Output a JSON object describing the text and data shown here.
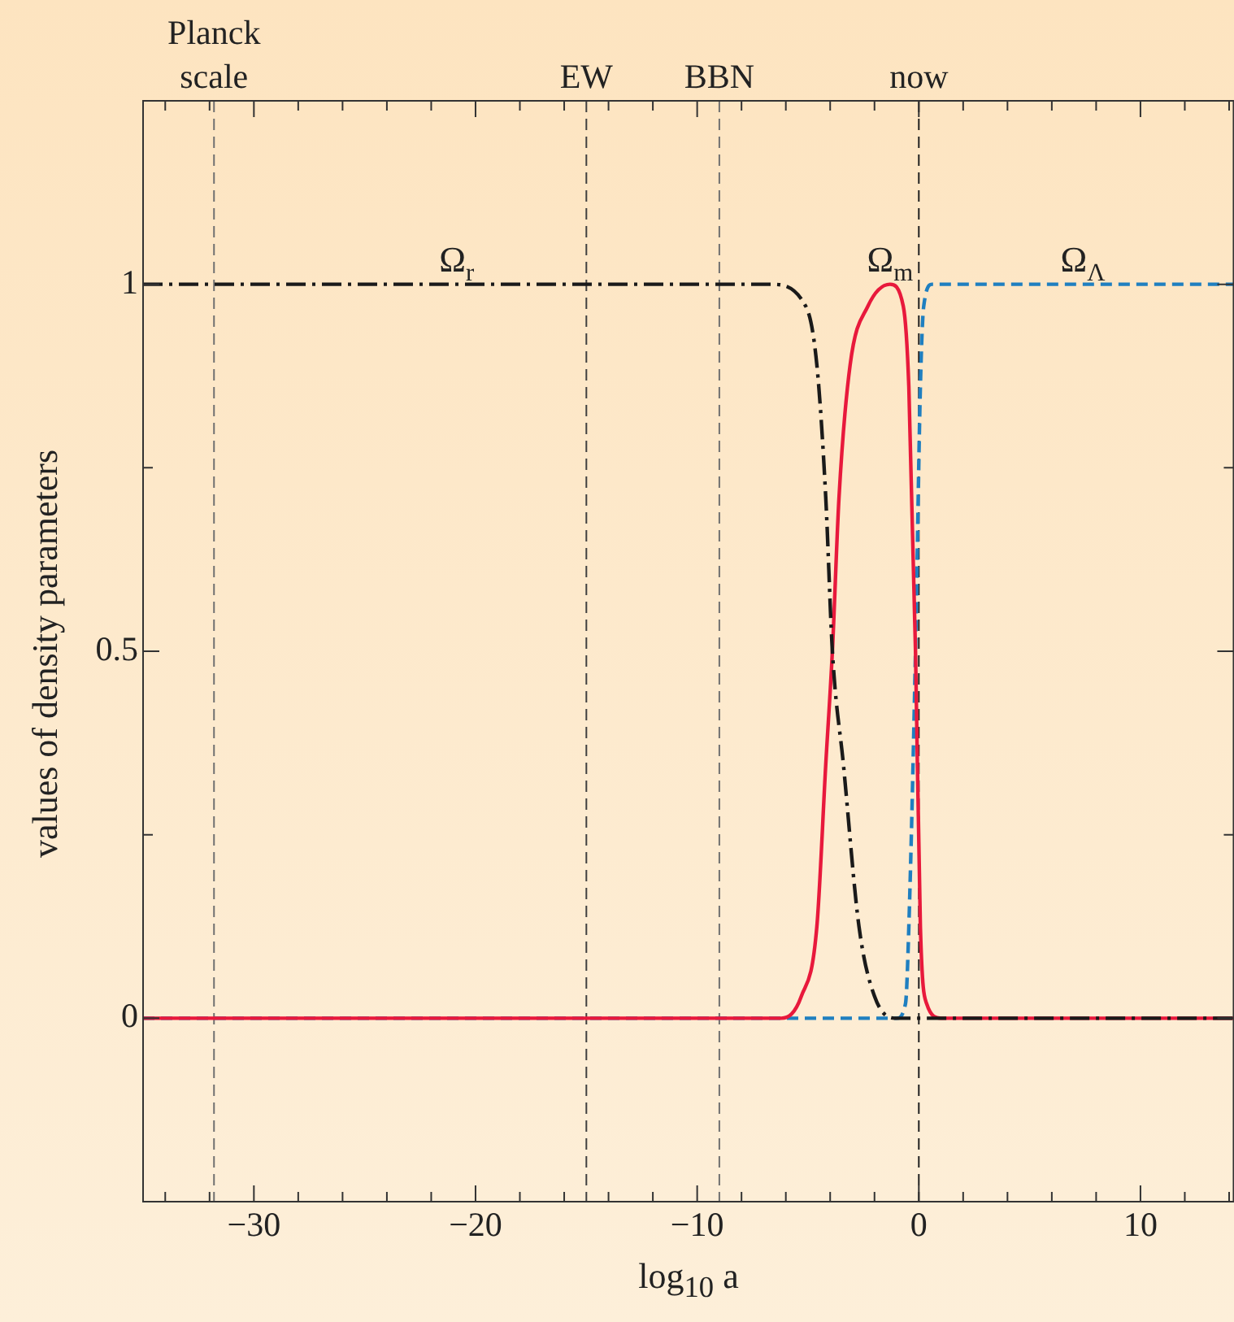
{
  "chart_data": {
    "type": "line",
    "xlabel": "log$_{10}$ a",
    "ylabel": "values of density parameters",
    "xlim": [
      -35,
      14.2
    ],
    "ylim": [
      -0.25,
      1.25
    ],
    "xticks": [
      {
        "value": -34,
        "label": null
      },
      {
        "value": -32,
        "label": null
      },
      {
        "value": -30,
        "label": "−30"
      },
      {
        "value": -28,
        "label": null
      },
      {
        "value": -26,
        "label": null
      },
      {
        "value": -24,
        "label": null
      },
      {
        "value": -22,
        "label": null
      },
      {
        "value": -20,
        "label": "−20"
      },
      {
        "value": -18,
        "label": null
      },
      {
        "value": -16,
        "label": null
      },
      {
        "value": -14,
        "label": null
      },
      {
        "value": -12,
        "label": null
      },
      {
        "value": -10,
        "label": "−10"
      },
      {
        "value": -8,
        "label": null
      },
      {
        "value": -6,
        "label": null
      },
      {
        "value": -4,
        "label": null
      },
      {
        "value": -2,
        "label": null
      },
      0,
      {
        "value": 2,
        "label": null
      },
      {
        "value": 4,
        "label": null
      },
      {
        "value": 6,
        "label": null
      },
      {
        "value": 8,
        "label": null
      },
      10,
      {
        "value": 12,
        "label": null
      },
      {
        "value": 14,
        "label": null
      }
    ],
    "yticks": [
      {
        "value": -0.25,
        "label": null
      },
      0,
      {
        "value": 0.25,
        "label": null
      },
      0.5,
      {
        "value": 0.75,
        "label": null
      },
      1
    ],
    "grid": false,
    "legend": false,
    "marker": "none",
    "ref_lines": [
      {
        "axis": "x",
        "value": -31.8,
        "label": "Planck scale",
        "color": "#707070",
        "line_style": "dashed"
      },
      {
        "axis": "x",
        "value": -15,
        "label": "EW",
        "color": "#404040",
        "line_style": "dashed"
      },
      {
        "axis": "x",
        "value": -9,
        "label": "BBN",
        "color": "#707070",
        "line_style": "dashed"
      },
      {
        "axis": "x",
        "value": 0,
        "label": "now",
        "color": "#202020",
        "line_style": "dashed"
      }
    ],
    "series": [
      {
        "name": "Ω$_{r}$",
        "color": "#1a1a1a",
        "line_style": "dashdot",
        "x": [
          -35,
          -6.7,
          -5.1,
          -4.6,
          -4.2,
          -3.9,
          -3.4,
          -2.7,
          -2.0,
          -1.1,
          14.2
        ],
        "values": [
          1,
          1,
          0.97,
          0.89,
          0.71,
          0.5,
          0.345,
          0.125,
          0.03,
          0,
          0
        ]
      },
      {
        "name": "Ω$_{m}$",
        "color": "#e8193c",
        "line_style": "solid",
        "x": [
          -35,
          -6.2,
          -5.3,
          -4.6,
          -4.2,
          -3.9,
          -3.6,
          -3.1,
          -2.3,
          -1.3,
          -0.7,
          -0.45,
          -0.15,
          0.07,
          0.35,
          1,
          14.2
        ],
        "values": [
          0,
          0,
          0.03,
          0.125,
          0.345,
          0.5,
          0.71,
          0.89,
          0.97,
          1,
          0.97,
          0.86,
          0.5,
          0.125,
          0.02,
          0,
          0
        ]
      },
      {
        "name": "Ω$_{Λ}$",
        "color": "#1f7fc0",
        "line_style": "dashed",
        "x": [
          -35,
          -1.0,
          -0.6,
          -0.45,
          -0.15,
          0.07,
          0.22,
          0.6,
          14.2
        ],
        "values": [
          0,
          0,
          0.02,
          0.125,
          0.5,
          0.86,
          0.97,
          1,
          1
        ]
      }
    ]
  }
}
